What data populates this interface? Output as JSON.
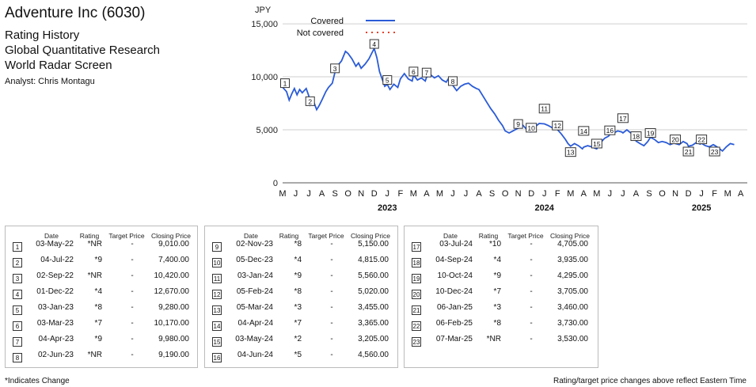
{
  "header": {
    "title": "Adventure Inc (6030)",
    "subtitles": [
      "Rating History",
      "Global Quantitative Research",
      "World Radar Screen"
    ],
    "analyst": "Analyst: Chris Montagu"
  },
  "chart_data": {
    "type": "line",
    "ylabel": "JPY",
    "ylim": [
      0,
      16500
    ],
    "yticks": [
      0,
      5000,
      10000,
      15000
    ],
    "ytick_labels": [
      "0",
      "5,000",
      "10,000",
      "15,000"
    ],
    "months": [
      "M",
      "J",
      "J",
      "A",
      "S",
      "O",
      "N",
      "D",
      "J",
      "F",
      "M",
      "A",
      "M",
      "J",
      "J",
      "A",
      "S",
      "O",
      "N",
      "D",
      "J",
      "F",
      "M",
      "A",
      "M",
      "J",
      "J",
      "A",
      "S",
      "O",
      "N",
      "D",
      "J",
      "F",
      "M",
      "A"
    ],
    "years": [
      {
        "label": "2023",
        "month_index": 8
      },
      {
        "label": "2024",
        "month_index": 20
      },
      {
        "label": "2025",
        "month_index": 32
      }
    ],
    "legend": [
      {
        "name": "Covered",
        "style": "solid",
        "color": "#2a5bd7"
      },
      {
        "name": "Not covered",
        "style": "dotted",
        "color": "#e8402a"
      }
    ],
    "series": [
      {
        "name": "Covered",
        "color": "#2a5bd7",
        "points": [
          [
            0.0,
            9010
          ],
          [
            0.3,
            8600
          ],
          [
            0.5,
            7800
          ],
          [
            0.7,
            8400
          ],
          [
            0.9,
            8900
          ],
          [
            1.1,
            8300
          ],
          [
            1.3,
            8800
          ],
          [
            1.5,
            8500
          ],
          [
            1.8,
            8900
          ],
          [
            2.0,
            8200
          ],
          [
            2.1,
            7400
          ],
          [
            2.3,
            7900
          ],
          [
            2.6,
            6900
          ],
          [
            2.8,
            7300
          ],
          [
            3.0,
            7800
          ],
          [
            3.3,
            8600
          ],
          [
            3.5,
            9000
          ],
          [
            3.8,
            9400
          ],
          [
            4.0,
            10420
          ],
          [
            4.3,
            11200
          ],
          [
            4.5,
            11500
          ],
          [
            4.8,
            12400
          ],
          [
            5.0,
            12200
          ],
          [
            5.3,
            11700
          ],
          [
            5.6,
            11000
          ],
          [
            5.8,
            11300
          ],
          [
            6.0,
            10800
          ],
          [
            6.3,
            11200
          ],
          [
            6.6,
            11700
          ],
          [
            6.8,
            12200
          ],
          [
            7.0,
            12670
          ],
          [
            7.2,
            11800
          ],
          [
            7.4,
            10500
          ],
          [
            7.6,
            9800
          ],
          [
            7.8,
            9100
          ],
          [
            8.0,
            9280
          ],
          [
            8.2,
            8800
          ],
          [
            8.5,
            9300
          ],
          [
            8.8,
            9000
          ],
          [
            9.0,
            9800
          ],
          [
            9.3,
            10300
          ],
          [
            9.6,
            9800
          ],
          [
            9.9,
            9600
          ],
          [
            10.0,
            10170
          ],
          [
            10.3,
            9700
          ],
          [
            10.6,
            9900
          ],
          [
            10.9,
            9600
          ],
          [
            11.0,
            9980
          ],
          [
            11.3,
            10200
          ],
          [
            11.6,
            9900
          ],
          [
            11.9,
            10100
          ],
          [
            12.2,
            9700
          ],
          [
            12.5,
            9500
          ],
          [
            12.7,
            9900
          ],
          [
            13.0,
            9190
          ],
          [
            13.3,
            8700
          ],
          [
            13.6,
            9100
          ],
          [
            13.9,
            9300
          ],
          [
            14.2,
            9400
          ],
          [
            14.5,
            9100
          ],
          [
            14.8,
            8900
          ],
          [
            15.0,
            8800
          ],
          [
            15.3,
            8200
          ],
          [
            15.6,
            7600
          ],
          [
            15.9,
            7000
          ],
          [
            16.2,
            6500
          ],
          [
            16.5,
            5900
          ],
          [
            16.8,
            5400
          ],
          [
            17.0,
            4900
          ],
          [
            17.3,
            4700
          ],
          [
            17.6,
            4900
          ],
          [
            17.9,
            5100
          ],
          [
            18.0,
            5150
          ],
          [
            18.3,
            5500
          ],
          [
            18.6,
            5100
          ],
          [
            18.9,
            4800
          ],
          [
            19.0,
            4815
          ],
          [
            19.3,
            5300
          ],
          [
            19.6,
            5600
          ],
          [
            20.0,
            5560
          ],
          [
            20.3,
            5400
          ],
          [
            20.6,
            5200
          ],
          [
            21.0,
            5020
          ],
          [
            21.3,
            4600
          ],
          [
            21.6,
            4100
          ],
          [
            21.8,
            3700
          ],
          [
            22.0,
            3455
          ],
          [
            22.3,
            3700
          ],
          [
            22.6,
            3500
          ],
          [
            22.9,
            3200
          ],
          [
            23.0,
            3365
          ],
          [
            23.3,
            3500
          ],
          [
            23.6,
            3400
          ],
          [
            23.9,
            3250
          ],
          [
            24.0,
            3205
          ],
          [
            24.3,
            3800
          ],
          [
            24.6,
            4200
          ],
          [
            24.9,
            4400
          ],
          [
            25.0,
            4560
          ],
          [
            25.3,
            4700
          ],
          [
            25.6,
            4900
          ],
          [
            25.9,
            4800
          ],
          [
            26.0,
            4705
          ],
          [
            26.3,
            5000
          ],
          [
            26.6,
            4700
          ],
          [
            26.9,
            4300
          ],
          [
            27.0,
            3935
          ],
          [
            27.3,
            3700
          ],
          [
            27.6,
            3500
          ],
          [
            27.9,
            3900
          ],
          [
            28.1,
            4295
          ],
          [
            28.4,
            4100
          ],
          [
            28.7,
            3800
          ],
          [
            29.0,
            3900
          ],
          [
            29.3,
            3800
          ],
          [
            29.6,
            3600
          ],
          [
            29.9,
            3750
          ],
          [
            30.0,
            3705
          ],
          [
            30.3,
            3600
          ],
          [
            30.6,
            3900
          ],
          [
            30.9,
            3700
          ],
          [
            31.0,
            3460
          ],
          [
            31.3,
            3550
          ],
          [
            31.6,
            3800
          ],
          [
            31.9,
            3650
          ],
          [
            32.0,
            3730
          ],
          [
            32.3,
            3500
          ],
          [
            32.6,
            3400
          ],
          [
            32.9,
            3600
          ],
          [
            33.0,
            3530
          ],
          [
            33.3,
            3300
          ],
          [
            33.6,
            3000
          ],
          [
            33.9,
            3400
          ],
          [
            34.2,
            3700
          ],
          [
            34.5,
            3600
          ]
        ]
      }
    ],
    "annotations": [
      {
        "n": "1",
        "x": 0.0,
        "label_y": 9400
      },
      {
        "n": "2",
        "x": 2.1,
        "label_y": 7700
      },
      {
        "n": "3",
        "x": 4.0,
        "label_y": 10800
      },
      {
        "n": "4",
        "x": 7.0,
        "label_y": 13100
      },
      {
        "n": "5",
        "x": 8.0,
        "label_y": 9700
      },
      {
        "n": "6",
        "x": 10.0,
        "label_y": 10500
      },
      {
        "n": "7",
        "x": 11.0,
        "label_y": 10400
      },
      {
        "n": "8",
        "x": 13.0,
        "label_y": 9600
      },
      {
        "n": "9",
        "x": 18.0,
        "label_y": 5550
      },
      {
        "n": "10",
        "x": 19.0,
        "label_y": 5200
      },
      {
        "n": "11",
        "x": 20.0,
        "label_y": 7000
      },
      {
        "n": "12",
        "x": 21.0,
        "label_y": 5400
      },
      {
        "n": "13",
        "x": 22.0,
        "label_y": 2900
      },
      {
        "n": "14",
        "x": 23.0,
        "label_y": 4900
      },
      {
        "n": "15",
        "x": 24.0,
        "label_y": 3700
      },
      {
        "n": "16",
        "x": 25.0,
        "label_y": 4950
      },
      {
        "n": "17",
        "x": 26.0,
        "label_y": 6100
      },
      {
        "n": "18",
        "x": 27.0,
        "label_y": 4400
      },
      {
        "n": "19",
        "x": 28.1,
        "label_y": 4700
      },
      {
        "n": "20",
        "x": 30.0,
        "label_y": 4100
      },
      {
        "n": "21",
        "x": 31.0,
        "label_y": 2950
      },
      {
        "n": "22",
        "x": 32.0,
        "label_y": 4100
      },
      {
        "n": "23",
        "x": 33.0,
        "label_y": 2950
      }
    ]
  },
  "table": {
    "headers": {
      "date": "Date",
      "rating": "Rating",
      "target": "Target Price",
      "closing": "Closing Price"
    },
    "panels": [
      [
        {
          "n": "1",
          "date": "03-May-22",
          "rating": "*NR",
          "target": "-",
          "close": "9,010.00"
        },
        {
          "n": "2",
          "date": "04-Jul-22",
          "rating": "*9",
          "target": "-",
          "close": "7,400.00"
        },
        {
          "n": "3",
          "date": "02-Sep-22",
          "rating": "*NR",
          "target": "-",
          "close": "10,420.00"
        },
        {
          "n": "4",
          "date": "01-Dec-22",
          "rating": "*4",
          "target": "-",
          "close": "12,670.00"
        },
        {
          "n": "5",
          "date": "03-Jan-23",
          "rating": "*8",
          "target": "-",
          "close": "9,280.00"
        },
        {
          "n": "6",
          "date": "03-Mar-23",
          "rating": "*7",
          "target": "-",
          "close": "10,170.00"
        },
        {
          "n": "7",
          "date": "04-Apr-23",
          "rating": "*9",
          "target": "-",
          "close": "9,980.00"
        },
        {
          "n": "8",
          "date": "02-Jun-23",
          "rating": "*NR",
          "target": "-",
          "close": "9,190.00"
        }
      ],
      [
        {
          "n": "9",
          "date": "02-Nov-23",
          "rating": "*8",
          "target": "-",
          "close": "5,150.00"
        },
        {
          "n": "10",
          "date": "05-Dec-23",
          "rating": "*4",
          "target": "-",
          "close": "4,815.00"
        },
        {
          "n": "11",
          "date": "03-Jan-24",
          "rating": "*9",
          "target": "-",
          "close": "5,560.00"
        },
        {
          "n": "12",
          "date": "05-Feb-24",
          "rating": "*8",
          "target": "-",
          "close": "5,020.00"
        },
        {
          "n": "13",
          "date": "05-Mar-24",
          "rating": "*3",
          "target": "-",
          "close": "3,455.00"
        },
        {
          "n": "14",
          "date": "04-Apr-24",
          "rating": "*7",
          "target": "-",
          "close": "3,365.00"
        },
        {
          "n": "15",
          "date": "03-May-24",
          "rating": "*2",
          "target": "-",
          "close": "3,205.00"
        },
        {
          "n": "16",
          "date": "04-Jun-24",
          "rating": "*5",
          "target": "-",
          "close": "4,560.00"
        }
      ],
      [
        {
          "n": "17",
          "date": "03-Jul-24",
          "rating": "*10",
          "target": "-",
          "close": "4,705.00"
        },
        {
          "n": "18",
          "date": "04-Sep-24",
          "rating": "*4",
          "target": "-",
          "close": "3,935.00"
        },
        {
          "n": "19",
          "date": "10-Oct-24",
          "rating": "*9",
          "target": "-",
          "close": "4,295.00"
        },
        {
          "n": "20",
          "date": "10-Dec-24",
          "rating": "*7",
          "target": "-",
          "close": "3,705.00"
        },
        {
          "n": "21",
          "date": "06-Jan-25",
          "rating": "*3",
          "target": "-",
          "close": "3,460.00"
        },
        {
          "n": "22",
          "date": "06-Feb-25",
          "rating": "*8",
          "target": "-",
          "close": "3,730.00"
        },
        {
          "n": "23",
          "date": "07-Mar-25",
          "rating": "*NR",
          "target": "-",
          "close": "3,530.00"
        }
      ]
    ]
  },
  "footer": {
    "left": "*Indicates Change",
    "right": "Rating/target price changes above reflect Eastern Time"
  }
}
